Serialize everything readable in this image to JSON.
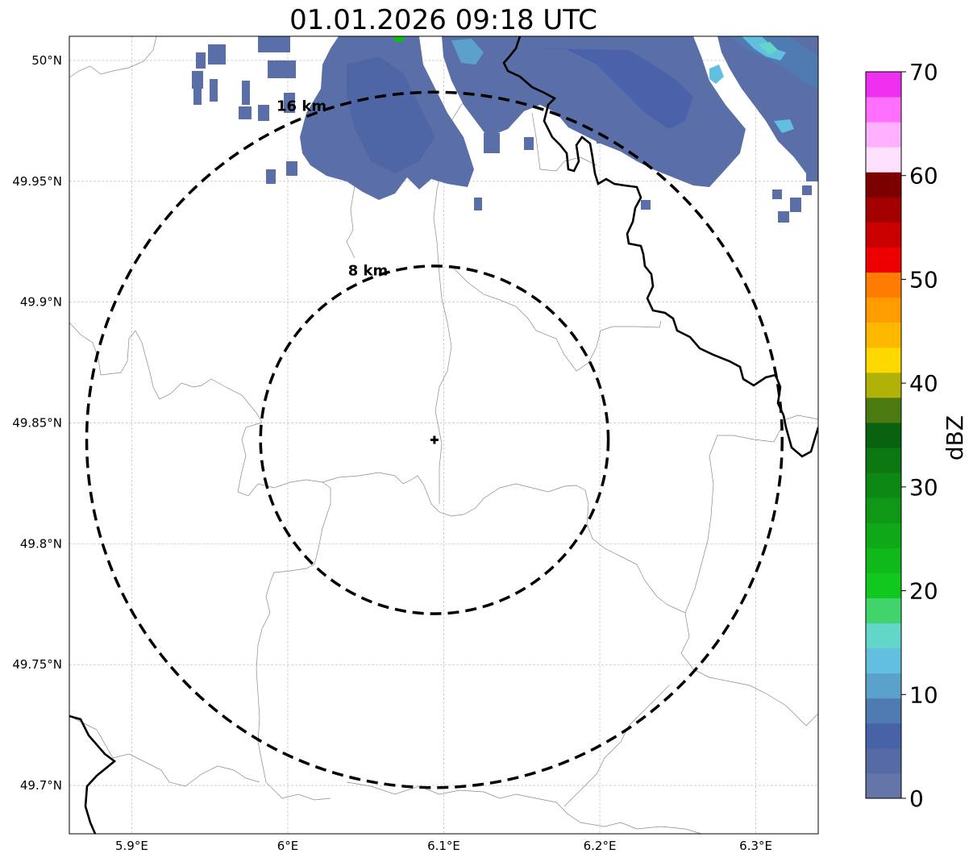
{
  "title": "01.01.2026 09:18 UTC",
  "map": {
    "lon_range": [
      5.86,
      6.34
    ],
    "lat_range": [
      49.68,
      50.01
    ],
    "x_ticks": [
      {
        "value": 5.9,
        "label": "5.9°E"
      },
      {
        "value": 6.0,
        "label": "6°E"
      },
      {
        "value": 6.1,
        "label": "6.1°E"
      },
      {
        "value": 6.2,
        "label": "6.2°E"
      },
      {
        "value": 6.3,
        "label": "6.3°E"
      }
    ],
    "y_ticks": [
      {
        "value": 50.0,
        "label": "50°N"
      },
      {
        "value": 49.95,
        "label": "49.95°N"
      },
      {
        "value": 49.9,
        "label": "49.9°N"
      },
      {
        "value": 49.85,
        "label": "49.85°N"
      },
      {
        "value": 49.8,
        "label": "49.8°N"
      },
      {
        "value": 49.75,
        "label": "49.75°N"
      },
      {
        "value": 49.7,
        "label": "49.7°N"
      }
    ],
    "gridlines": true,
    "center": {
      "lon": 6.094,
      "lat": 49.843
    },
    "range_rings": [
      {
        "radius_km": 8,
        "label": "8 km"
      },
      {
        "radius_km": 16,
        "label": "16 km"
      }
    ]
  },
  "colorbar": {
    "label": "dBZ",
    "min": 0,
    "max": 70,
    "tick_labels": [
      "0",
      "10",
      "20",
      "30",
      "40",
      "50",
      "60",
      "70"
    ],
    "colors": [
      "#6475a8",
      "#566aa5",
      "#4862a8",
      "#4f7bb2",
      "#5aa1cc",
      "#63bfe0",
      "#62d6c9",
      "#40d46a",
      "#10c81e",
      "#10b81a",
      "#0fa818",
      "#0e9816",
      "#0d8814",
      "#0b7812",
      "#096210",
      "#4a7a10",
      "#b0b208",
      "#ffd800",
      "#ffb800",
      "#ff9c00",
      "#ff7c00",
      "#ee0000",
      "#c80000",
      "#a40000",
      "#7c0000",
      "#ffe0ff",
      "#ffb0ff",
      "#ff70ff",
      "#f030f0"
    ]
  },
  "icons": {
    "center_marker": "plus-marker-icon"
  }
}
